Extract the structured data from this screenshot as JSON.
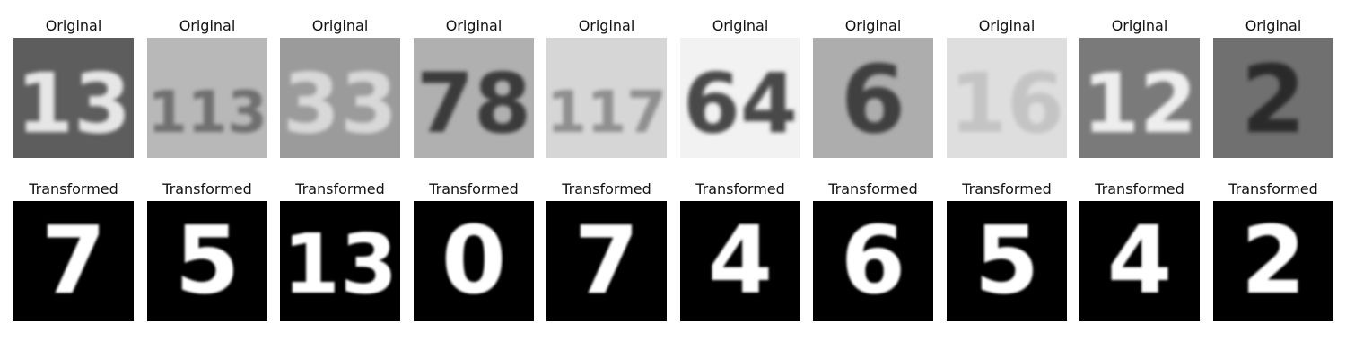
{
  "figure": {
    "original_label": "Original",
    "transformed_label": "Transformed"
  },
  "originals": [
    {
      "icon": "svhn-digit-13-image",
      "text": "13",
      "bg": "#5d5d5d",
      "fg": "#e6e6e6"
    },
    {
      "icon": "svhn-digit-113-image",
      "text": "113",
      "bg": "#b8b8b8",
      "fg": "#6f6f6f"
    },
    {
      "icon": "svhn-digit-33-image",
      "text": "33",
      "bg": "#9b9b9b",
      "fg": "#d8d8d8"
    },
    {
      "icon": "svhn-digit-78-image",
      "text": "78",
      "bg": "#b0b0b0",
      "fg": "#3b3b3b"
    },
    {
      "icon": "svhn-digit-117-image",
      "text": "117",
      "bg": "#d6d6d6",
      "fg": "#8f8f8f"
    },
    {
      "icon": "svhn-digit-64-image",
      "text": "64",
      "bg": "#f2f2f2",
      "fg": "#4a4a4a"
    },
    {
      "icon": "svhn-digit-6-image",
      "text": "6",
      "bg": "#adadad",
      "fg": "#3f3f3f"
    },
    {
      "icon": "svhn-digit-16-image",
      "text": "16",
      "bg": "#dedede",
      "fg": "#c4c4c4"
    },
    {
      "icon": "svhn-digit-12-image",
      "text": "12",
      "bg": "#7a7a7a",
      "fg": "#eeeeee"
    },
    {
      "icon": "svhn-digit-2-image",
      "text": "2",
      "bg": "#707070",
      "fg": "#2b2b2b"
    }
  ],
  "transformed": [
    {
      "icon": "mnist-digit-7-image",
      "text": "7"
    },
    {
      "icon": "mnist-digit-5-image",
      "text": "5"
    },
    {
      "icon": "mnist-digit-13-image",
      "text": "13"
    },
    {
      "icon": "mnist-digit-0-image",
      "text": "0"
    },
    {
      "icon": "mnist-digit-7-image",
      "text": "7"
    },
    {
      "icon": "mnist-digit-4-image",
      "text": "4"
    },
    {
      "icon": "mnist-digit-6-image",
      "text": "6"
    },
    {
      "icon": "mnist-digit-5-image",
      "text": "5"
    },
    {
      "icon": "mnist-digit-4-image",
      "text": "4"
    },
    {
      "icon": "mnist-digit-2-image",
      "text": "2"
    }
  ]
}
